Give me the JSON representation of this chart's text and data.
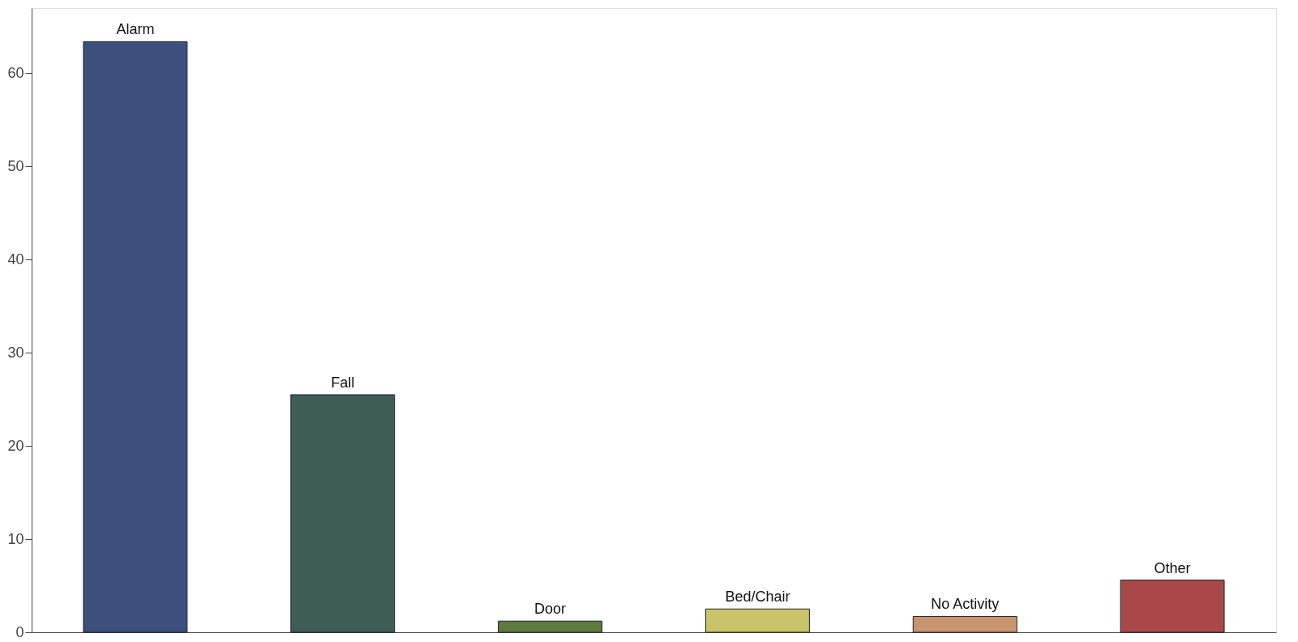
{
  "chart_data": {
    "type": "bar",
    "categories": [
      "Alarm",
      "Fall",
      "Door",
      "Bed/Chair",
      "No Activity",
      "Other"
    ],
    "values": [
      63.4,
      25.5,
      1.2,
      2.5,
      1.7,
      5.6
    ],
    "colors": [
      "#3d4f7c",
      "#3e5e55",
      "#5f7a3f",
      "#c8c46a",
      "#c99470",
      "#a84848"
    ],
    "ylim": [
      0,
      67
    ],
    "yticks": [
      0,
      10,
      20,
      30,
      40,
      50,
      60
    ],
    "grid": false,
    "tick_labels": "y"
  }
}
